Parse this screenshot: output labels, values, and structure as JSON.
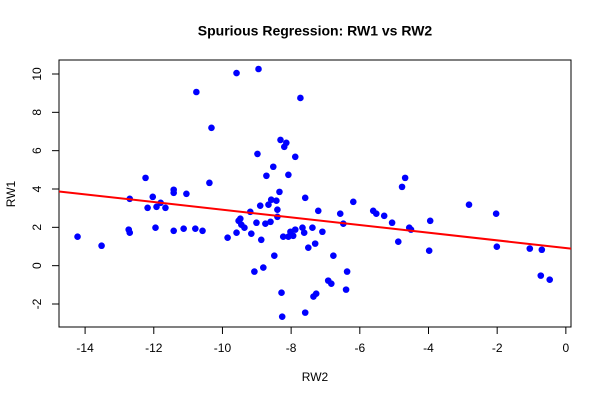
{
  "chart_data": {
    "type": "scatter",
    "title": "Spurious Regression: RW1 vs RW2",
    "x_label": "RW2",
    "y_label": "RW1",
    "color": "#0000ff",
    "x": [
      -14.22,
      -13.52,
      -12.7,
      -12.73,
      -12.7,
      -12.24,
      -12.18,
      -12.03,
      -11.95,
      -11.92,
      -11.8,
      -11.66,
      -11.42,
      -11.42,
      -11.42,
      -11.13,
      -11.05,
      -10.79,
      -10.76,
      -10.58,
      -10.38,
      -10.32,
      -9.85,
      -9.59,
      -9.59,
      -9.53,
      -9.48,
      -9.45,
      -9.36,
      -9.19,
      -9.16,
      -9.07,
      -9.01,
      -8.98,
      -8.95,
      -8.9,
      -8.87,
      -8.81,
      -8.75,
      -8.72,
      -8.66,
      -8.6,
      -8.58,
      -8.52,
      -8.49,
      -8.43,
      -8.4,
      -8.4,
      -8.34,
      -8.31,
      -8.28,
      -8.26,
      -8.23,
      -8.2,
      -8.14,
      -8.08,
      -8.08,
      -8.02,
      -7.94,
      -7.88,
      -7.88,
      -7.73,
      -7.67,
      -7.62,
      -7.59,
      -7.59,
      -7.5,
      -7.38,
      -7.35,
      -7.3,
      -7.27,
      -7.21,
      -7.09,
      -6.92,
      -6.83,
      -6.77,
      -6.57,
      -6.48,
      -6.4,
      -6.37,
      -6.19,
      -5.61,
      -5.52,
      -5.29,
      -5.06,
      -4.88,
      -4.77,
      -4.68,
      -4.56,
      -4.51,
      -3.98,
      -3.95,
      -2.82,
      -2.03,
      -2.01,
      -1.05,
      -0.73,
      -0.7,
      -0.47
    ],
    "values": [
      1.51,
      1.04,
      3.49,
      1.88,
      1.72,
      4.58,
      3.02,
      3.59,
      1.98,
      3.07,
      3.28,
      3.02,
      3.96,
      3.8,
      1.82,
      1.93,
      3.75,
      1.93,
      9.06,
      1.82,
      4.32,
      7.19,
      1.46,
      10.05,
      1.72,
      2.34,
      2.45,
      2.14,
      1.98,
      2.81,
      1.67,
      -0.31,
      2.24,
      5.83,
      10.26,
      3.13,
      1.35,
      -0.1,
      2.19,
      4.69,
      3.18,
      2.29,
      3.44,
      5.16,
      0.52,
      3.39,
      2.55,
      2.92,
      3.85,
      6.56,
      -1.41,
      -2.66,
      1.51,
      6.2,
      6.41,
      1.51,
      4.74,
      1.77,
      1.56,
      5.68,
      1.88,
      8.75,
      1.98,
      1.72,
      3.54,
      -2.45,
      0.94,
      1.98,
      -1.61,
      1.15,
      -1.46,
      2.86,
      1.77,
      -0.78,
      -0.94,
      0.52,
      2.71,
      2.19,
      -1.25,
      -0.31,
      3.33,
      2.86,
      2.71,
      2.6,
      2.24,
      1.25,
      4.11,
      4.58,
      1.98,
      1.88,
      0.78,
      2.34,
      3.18,
      2.71,
      0.99,
      0.89,
      -0.52,
      0.83,
      -0.73
    ],
    "regression_line": {
      "intercept": 0.92,
      "slope": -0.2,
      "color": "#ff0000"
    },
    "xlim": [
      -14.76,
      0.15
    ],
    "ylim": [
      -3.2,
      10.73
    ],
    "xticks": [
      -14,
      -12,
      -10,
      -8,
      -6,
      -4,
      -2,
      0
    ],
    "yticks": [
      -2,
      0,
      2,
      4,
      6,
      8,
      10
    ]
  }
}
